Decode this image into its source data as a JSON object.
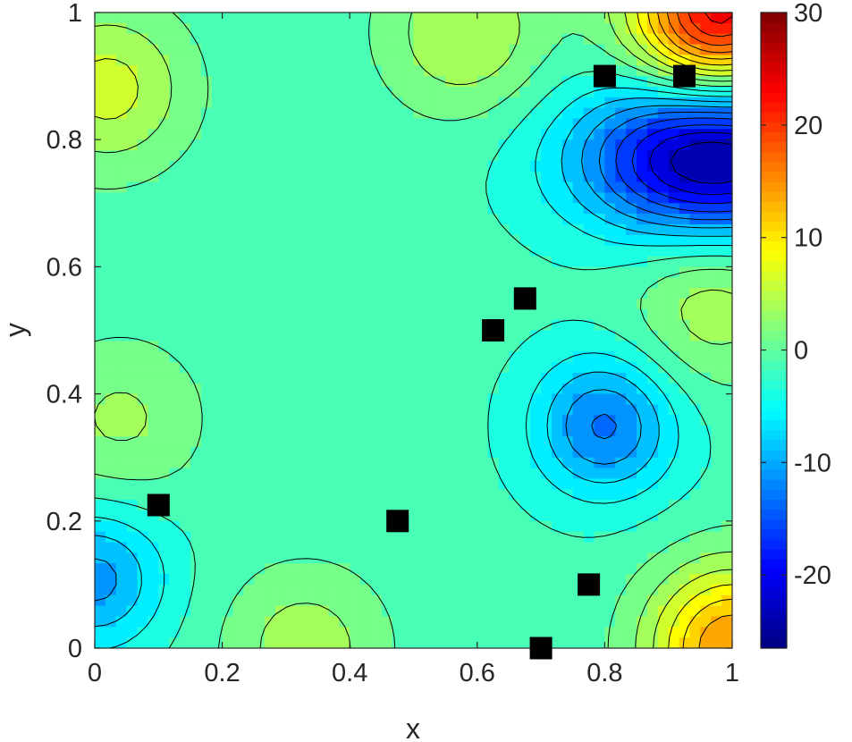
{
  "chart_data": {
    "type": "heatmap",
    "subtype": "filled-contour",
    "title": "",
    "xlabel": "x",
    "ylabel": "y",
    "xlim": [
      0,
      1
    ],
    "ylim": [
      0,
      1
    ],
    "x_ticks": [
      0,
      0.2,
      0.4,
      0.6,
      0.8,
      1
    ],
    "x_tick_labels": [
      "0",
      "0.2",
      "0.4",
      "0.6",
      "0.8",
      "1"
    ],
    "y_ticks": [
      0,
      0.2,
      0.4,
      0.6,
      0.8,
      1
    ],
    "y_tick_labels": [
      "0",
      "0.2",
      "0.4",
      "0.6",
      "0.8",
      "1"
    ],
    "colormap": "jet",
    "colorbar": {
      "range": [
        -26.5,
        30
      ],
      "ticks": [
        -20,
        -10,
        0,
        10,
        20,
        30
      ],
      "tick_labels": [
        "-20",
        "-10",
        "0",
        "10",
        "20",
        "30"
      ]
    },
    "contour_levels": [
      -25,
      -22.5,
      -20,
      -17.5,
      -15,
      -12.5,
      -10,
      -7.5,
      -5,
      -2.5,
      0,
      2.5,
      5,
      7.5,
      10,
      12.5,
      15,
      17.5,
      20,
      22.5,
      25
    ],
    "grid": false,
    "field_features": [
      {
        "kind": "min",
        "x": 0.97,
        "y": 0.77,
        "value": -26
      },
      {
        "kind": "min",
        "x": 0.8,
        "y": 0.35,
        "value": -13
      },
      {
        "kind": "min",
        "x": 0.0,
        "y": 0.11,
        "value": -11
      },
      {
        "kind": "max",
        "x": 0.98,
        "y": 1.0,
        "value": 24
      },
      {
        "kind": "max",
        "x": 1.0,
        "y": 0.0,
        "value": 15
      },
      {
        "kind": "max",
        "x": 0.02,
        "y": 0.88,
        "value": 6
      },
      {
        "kind": "max",
        "x": 0.33,
        "y": 0.0,
        "value": 4
      },
      {
        "kind": "max",
        "x": 0.97,
        "y": 0.54,
        "value": 4
      },
      {
        "kind": "max",
        "x": 0.58,
        "y": 0.97,
        "value": 5
      },
      {
        "kind": "max",
        "x": 0.04,
        "y": 0.36,
        "value": 3
      }
    ],
    "markers": {
      "shape": "square",
      "color": "#000000",
      "points": [
        {
          "x": 0.8,
          "y": 0.9
        },
        {
          "x": 0.925,
          "y": 0.9
        },
        {
          "x": 0.675,
          "y": 0.55
        },
        {
          "x": 0.625,
          "y": 0.5
        },
        {
          "x": 0.1,
          "y": 0.225
        },
        {
          "x": 0.475,
          "y": 0.2
        },
        {
          "x": 0.775,
          "y": 0.1
        },
        {
          "x": 0.7,
          "y": 0.0
        }
      ]
    }
  }
}
